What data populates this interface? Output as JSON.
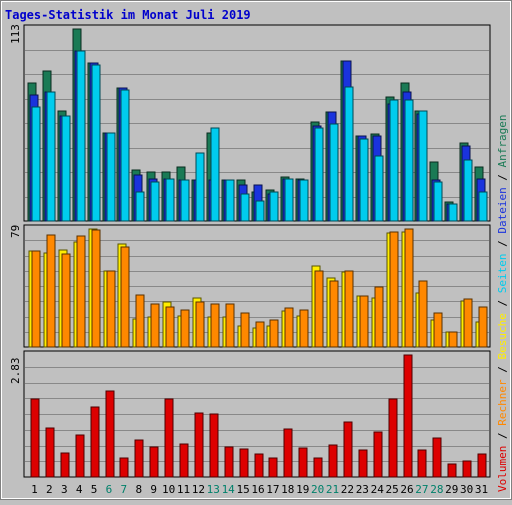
{
  "chart_data": {
    "type": "bar",
    "title": "Tages-Statistik im Monat Juli 2019",
    "categories": [
      "1",
      "2",
      "3",
      "4",
      "5",
      "6",
      "7",
      "8",
      "9",
      "10",
      "11",
      "12",
      "13",
      "14",
      "15",
      "16",
      "17",
      "18",
      "19",
      "20",
      "21",
      "22",
      "23",
      "24",
      "25",
      "26",
      "27",
      "28",
      "29",
      "30",
      "31"
    ],
    "weekend_days": [
      "6",
      "7",
      "13",
      "14",
      "20",
      "21",
      "27",
      "28"
    ],
    "y_tick_labels": {
      "top": "113",
      "middle": "79",
      "bottom": "2.83"
    },
    "legend_right": [
      {
        "text": "Volumen",
        "color": "#dd0000"
      },
      {
        "text": "Rechner",
        "color": "#ff8800"
      },
      {
        "text": "Besuche",
        "color": "#ffee00"
      },
      {
        "text": "Seiten",
        "color": "#00ccee"
      },
      {
        "text": "Dateien",
        "color": "#1a33dd"
      },
      {
        "text": "Anfragen",
        "color": "#1a7a55"
      }
    ],
    "separator": " / ",
    "series": [
      {
        "name": "Anfragen",
        "color": "#1a7a55",
        "panel": "top",
        "values": [
          81,
          88,
          65,
          113,
          93,
          52,
          78,
          30,
          29,
          29,
          32,
          24,
          52,
          24,
          24,
          17,
          18,
          26,
          25,
          58,
          64,
          94,
          50,
          51,
          73,
          81,
          65,
          35,
          11,
          46,
          32
        ]
      },
      {
        "name": "Dateien",
        "color": "#1a33dd",
        "panel": "top",
        "values": [
          74,
          76,
          62,
          100,
          93,
          52,
          78,
          27,
          25,
          25,
          24,
          24,
          24,
          24,
          21,
          21,
          16,
          25,
          24,
          56,
          64,
          94,
          50,
          50,
          69,
          76,
          63,
          24,
          10,
          44,
          25
        ]
      },
      {
        "name": "Seiten",
        "color": "#00ccee",
        "panel": "top",
        "values": [
          67,
          76,
          62,
          100,
          92,
          52,
          77,
          17,
          23,
          25,
          24,
          40,
          55,
          24,
          16,
          12,
          17,
          25,
          24,
          55,
          57,
          79,
          48,
          38,
          71,
          71,
          65,
          23,
          10,
          36,
          17
        ]
      },
      {
        "name": "Besuche",
        "color": "#ffee00",
        "panel": "middle",
        "values": [
          64,
          63,
          65,
          70,
          79,
          51,
          69,
          19,
          20,
          30,
          21,
          33,
          20,
          20,
          14,
          13,
          14,
          24,
          21,
          54,
          46,
          50,
          34,
          33,
          76,
          77,
          36,
          18,
          10,
          31,
          17
        ]
      },
      {
        "name": "Rechner",
        "color": "#ff8800",
        "panel": "middle",
        "values": [
          64,
          75,
          62,
          74,
          78,
          51,
          67,
          35,
          29,
          27,
          25,
          30,
          29,
          29,
          23,
          17,
          18,
          26,
          25,
          51,
          44,
          51,
          34,
          40,
          77,
          79,
          44,
          23,
          10,
          32,
          27
        ]
      },
      {
        "name": "Volumen",
        "color": "#dd0000",
        "panel": "bottom",
        "values": [
          1.8,
          1.13,
          0.55,
          0.98,
          1.62,
          2.0,
          0.45,
          0.85,
          0.7,
          1.82,
          0.77,
          1.48,
          1.45,
          0.7,
          0.65,
          0.53,
          0.45,
          1.12,
          0.68,
          0.43,
          0.75,
          1.28,
          0.62,
          1.05,
          1.82,
          2.83,
          0.62,
          0.9,
          0.3,
          0.38,
          0.53
        ]
      }
    ]
  }
}
